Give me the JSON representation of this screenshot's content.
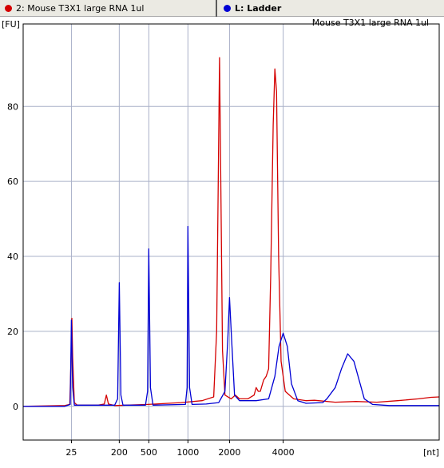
{
  "tabs": [
    {
      "label": "2: Mouse T3X1 large RNA 1ul",
      "color": "#d40000"
    },
    {
      "label": "L: Ladder",
      "color": "#0000d4"
    }
  ],
  "chart_data": {
    "type": "line",
    "title": "Mouse T3X1 large RNA 1ul",
    "ylabel": "[FU]",
    "xlabel": "[nt]",
    "ylim": [
      -9,
      102
    ],
    "yticks": [
      0,
      20,
      40,
      60,
      80
    ],
    "xticks": [
      "25",
      "200",
      "500",
      "1000",
      "2000",
      "4000"
    ],
    "xscale": "time-based (ladder positions)",
    "grid": true,
    "xlim_pos": [
      0,
      100
    ],
    "tick_positions": [
      11.6,
      23.1,
      30.2,
      39.6,
      49.6,
      62.5
    ],
    "series": [
      {
        "name": "Mouse T3X1 large RNA 1ul",
        "color": "#d40000",
        "points": [
          [
            0,
            0
          ],
          [
            10,
            0.2
          ],
          [
            11.2,
            0.5
          ],
          [
            11.5,
            12
          ],
          [
            11.7,
            23.5
          ],
          [
            11.9,
            13
          ],
          [
            12.3,
            1
          ],
          [
            13,
            0.3
          ],
          [
            18,
            0.3
          ],
          [
            19.5,
            0.6
          ],
          [
            20,
            3
          ],
          [
            20.5,
            0.6
          ],
          [
            22,
            0.2
          ],
          [
            30,
            0.5
          ],
          [
            38,
            1
          ],
          [
            43,
            1.5
          ],
          [
            45.8,
            2.5
          ],
          [
            46.5,
            20
          ],
          [
            46.9,
            60
          ],
          [
            47.2,
            93
          ],
          [
            47.5,
            60
          ],
          [
            47.9,
            15
          ],
          [
            48.5,
            3
          ],
          [
            50,
            2
          ],
          [
            51,
            3
          ],
          [
            52,
            2
          ],
          [
            54,
            2
          ],
          [
            55.5,
            3
          ],
          [
            56,
            5
          ],
          [
            56.5,
            4
          ],
          [
            57,
            4
          ],
          [
            57.8,
            7
          ],
          [
            58.4,
            8
          ],
          [
            59,
            10
          ],
          [
            59.5,
            35
          ],
          [
            60.1,
            75
          ],
          [
            60.5,
            90
          ],
          [
            60.9,
            84
          ],
          [
            61.4,
            40
          ],
          [
            62,
            12
          ],
          [
            63,
            4
          ],
          [
            65,
            2
          ],
          [
            68,
            1.5
          ],
          [
            70,
            1.6
          ],
          [
            75,
            1.1
          ],
          [
            80,
            1.3
          ],
          [
            85,
            1.1
          ],
          [
            90,
            1.5
          ],
          [
            95,
            2
          ],
          [
            98,
            2.4
          ],
          [
            100,
            2.5
          ]
        ]
      },
      {
        "name": "L: Ladder",
        "color": "#0000d4",
        "points": [
          [
            0,
            0
          ],
          [
            10,
            0
          ],
          [
            11.3,
            0.5
          ],
          [
            11.6,
            23
          ],
          [
            11.9,
            5
          ],
          [
            12.3,
            0.3
          ],
          [
            22,
            0.3
          ],
          [
            22.7,
            2
          ],
          [
            23.1,
            33
          ],
          [
            23.5,
            3
          ],
          [
            24,
            0.3
          ],
          [
            29.4,
            0.3
          ],
          [
            29.9,
            4
          ],
          [
            30.2,
            42
          ],
          [
            30.6,
            5
          ],
          [
            31.2,
            0.3
          ],
          [
            39,
            0.5
          ],
          [
            39.4,
            5
          ],
          [
            39.6,
            48
          ],
          [
            40,
            5
          ],
          [
            40.6,
            0.5
          ],
          [
            44,
            0.6
          ],
          [
            47,
            1
          ],
          [
            48.5,
            4
          ],
          [
            49.2,
            18
          ],
          [
            49.6,
            29
          ],
          [
            50.1,
            18
          ],
          [
            50.8,
            3
          ],
          [
            52,
            1.5
          ],
          [
            56,
            1.5
          ],
          [
            59,
            2
          ],
          [
            60.5,
            8
          ],
          [
            61.5,
            16
          ],
          [
            62.5,
            19.5
          ],
          [
            63.5,
            16
          ],
          [
            64.5,
            6
          ],
          [
            66,
            1.5
          ],
          [
            68,
            0.8
          ],
          [
            72,
            1
          ],
          [
            73,
            2
          ],
          [
            75,
            5
          ],
          [
            76.5,
            10
          ],
          [
            78,
            14
          ],
          [
            79.5,
            12
          ],
          [
            81,
            6
          ],
          [
            82,
            2
          ],
          [
            84,
            0.5
          ],
          [
            88,
            0.2
          ],
          [
            100,
            0.2
          ]
        ]
      }
    ]
  }
}
